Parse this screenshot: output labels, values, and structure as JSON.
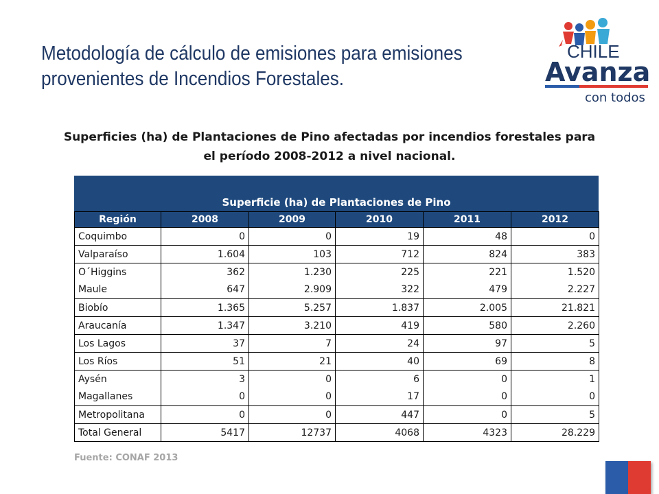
{
  "header": {
    "title_line1": "Metodología de cálculo de emisiones para emisiones",
    "title_line2": "provenientes de Incendios Forestales."
  },
  "logo": {
    "word1": "CHILE",
    "word2": "Avanza",
    "word3": "con todos"
  },
  "subtitle": {
    "line1": "Superficies (ha) de Plantaciones de Pino afectadas por incendios forestales para",
    "line2": "el período  2008-2012  a nivel nacional."
  },
  "table": {
    "caption": "Superficie (ha) de Plantaciones de Pino",
    "columns": [
      "Región",
      "2008",
      "2009",
      "2010",
      "2011",
      "2012"
    ],
    "rows": [
      [
        "Coquimbo",
        "0",
        "0",
        "19",
        "48",
        "0"
      ],
      [
        "Valparaíso",
        "1.604",
        "103",
        "712",
        "824",
        "383"
      ],
      [
        "O´Higgins",
        "362",
        "1.230",
        "225",
        "221",
        "1.520"
      ],
      [
        "Maule",
        "647",
        "2.909",
        "322",
        "479",
        "2.227"
      ],
      [
        "Biobío",
        "1.365",
        "5.257",
        "1.837",
        "2.005",
        "21.821"
      ],
      [
        "Araucanía",
        "1.347",
        "3.210",
        "419",
        "580",
        "2.260"
      ],
      [
        "Los Lagos",
        "37",
        "7",
        "24",
        "97",
        "5"
      ],
      [
        "Los Ríos",
        "51",
        "21",
        "40",
        "69",
        "8"
      ],
      [
        "Aysén",
        "3",
        "0",
        "6",
        "0",
        "1"
      ],
      [
        "Magallanes",
        "0",
        "0",
        "17",
        "0",
        "0"
      ],
      [
        "Metropolitana",
        "0",
        "0",
        "447",
        "0",
        "5"
      ],
      [
        "Total General",
        "5417",
        "12737",
        "4068",
        "4323",
        "28.229"
      ]
    ]
  },
  "footer": {
    "source": "Fuente: CONAF 2013"
  },
  "colors": {
    "title": "#1f3864",
    "table_header": "#1f497d",
    "flag_blue": "#2a5caa",
    "flag_red": "#e03b32"
  }
}
